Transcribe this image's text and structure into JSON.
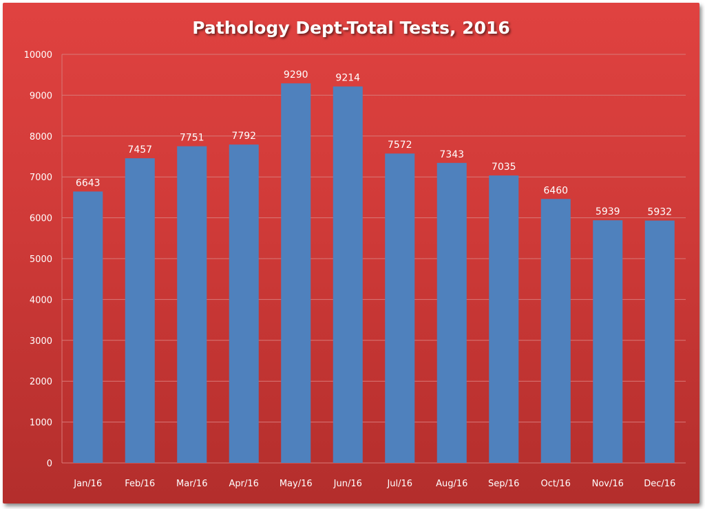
{
  "chart_data": {
    "type": "bar",
    "title": "Pathology Dept-Total Tests, 2016",
    "xlabel": "",
    "ylabel": "",
    "categories": [
      "Jan/16",
      "Feb/16",
      "Mar/16",
      "Apr/16",
      "May/16",
      "Jun/16",
      "Jul/16",
      "Aug/16",
      "Sep/16",
      "Oct/16",
      "Nov/16",
      "Dec/16"
    ],
    "values": [
      6643,
      7457,
      7751,
      7792,
      9290,
      9214,
      7572,
      7343,
      7035,
      6460,
      5939,
      5932
    ],
    "data_labels": [
      "6643",
      "7457",
      "7751",
      "7792",
      "9290",
      "9214",
      "7572",
      "7343",
      "7035",
      "6460",
      "5939",
      "5932"
    ],
    "y_ticks": [
      "0",
      "1000",
      "2000",
      "3000",
      "4000",
      "5000",
      "6000",
      "7000",
      "8000",
      "9000",
      "10000"
    ],
    "ylim": [
      0,
      10000
    ],
    "grid": true,
    "legend": "none",
    "colors": {
      "bar": "#4f81bd",
      "background_top": "#e04240",
      "background_bottom": "#b32e2c",
      "gridline": "#d87a78",
      "text": "#ffffff"
    }
  }
}
